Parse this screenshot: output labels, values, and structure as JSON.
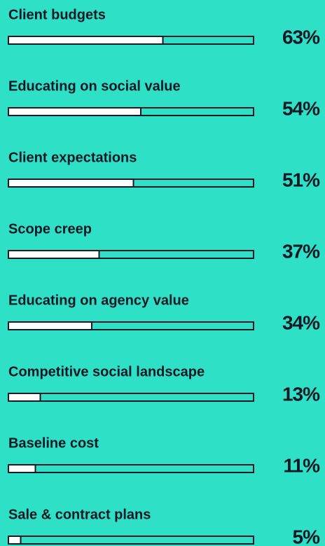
{
  "chart_data": {
    "type": "progress-bar",
    "categories": [
      "Client budgets",
      "Educating on social value",
      "Client expectations",
      "Scope creep",
      "Educating on agency value",
      "Competitive social landscape",
      "Baseline cost",
      "Sale & contract plans"
    ],
    "values": [
      63,
      54,
      51,
      37,
      34,
      13,
      11,
      5
    ],
    "value_labels": [
      "63%",
      "54%",
      "51%",
      "37%",
      "34%",
      "13%",
      "11%",
      "5%"
    ],
    "xlim": [
      0,
      100
    ],
    "color": "#ffffff",
    "track_color": "#2ee0c5",
    "outline_color": "#121826"
  }
}
